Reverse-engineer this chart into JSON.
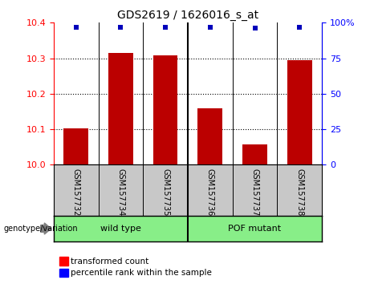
{
  "title": "GDS2619 / 1626016_s_at",
  "samples": [
    "GSM157732",
    "GSM157734",
    "GSM157735",
    "GSM157736",
    "GSM157737",
    "GSM157738"
  ],
  "transformed_counts": [
    10.103,
    10.315,
    10.308,
    10.16,
    10.057,
    10.295
  ],
  "percentile_ranks": [
    97,
    97,
    97,
    97,
    96,
    97
  ],
  "ylim_left": [
    10.0,
    10.4
  ],
  "ylim_right": [
    0,
    100
  ],
  "yticks_left": [
    10.0,
    10.1,
    10.2,
    10.3,
    10.4
  ],
  "yticks_right": [
    0,
    25,
    50,
    75,
    100
  ],
  "bar_color": "#bb0000",
  "dot_color": "#0000bb",
  "group_label": "genotype/variation",
  "groups": [
    {
      "label": "wild type",
      "start": 0,
      "end": 3
    },
    {
      "label": "POF mutant",
      "start": 3,
      "end": 6
    }
  ],
  "group_color": "#88ee88",
  "tick_bg_color": "#c8c8c8",
  "legend_bar_label": "transformed count",
  "legend_dot_label": "percentile rank within the sample",
  "figsize": [
    4.61,
    3.54
  ],
  "dpi": 100
}
